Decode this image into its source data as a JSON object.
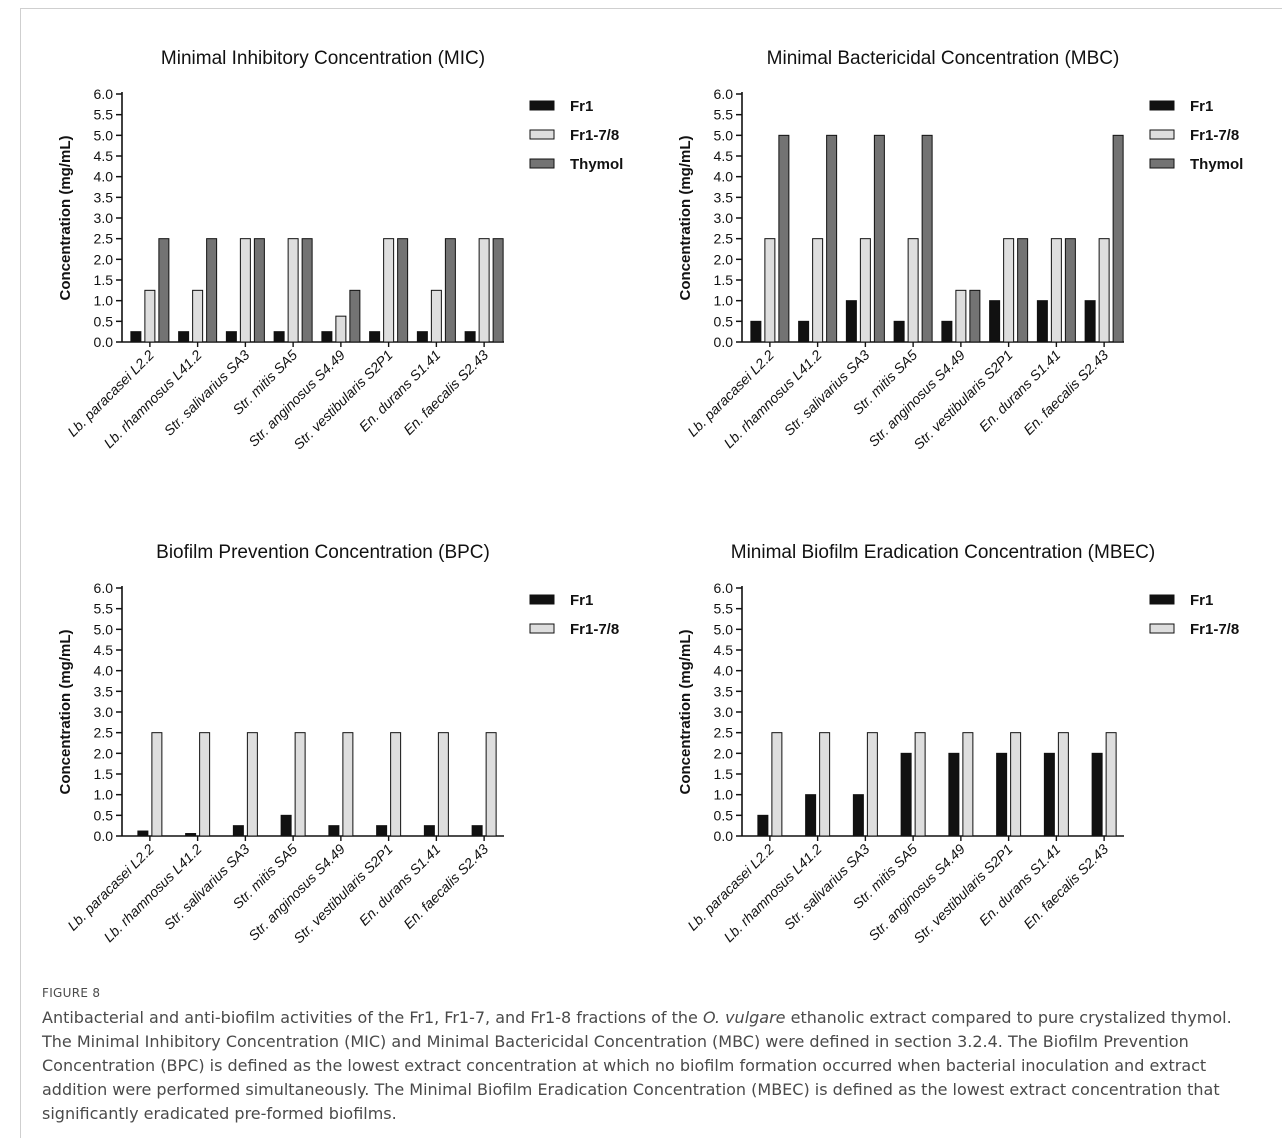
{
  "chart_data": [
    {
      "type": "bar",
      "title": "Minimal Inhibitory Concentration (MIC)",
      "ylabel": "Concentration (mg/mL)",
      "xlabel": "",
      "ylim": [
        0,
        6
      ],
      "yticks": [
        "0.0",
        "0.5",
        "1.0",
        "1.5",
        "2.0",
        "2.5",
        "3.0",
        "3.5",
        "4.0",
        "4.5",
        "5.0",
        "5.5",
        "6.0"
      ],
      "grid": false,
      "legend_position": "right",
      "categories": [
        "Lb. paracasei L2.2",
        "Lb. rhamnosus L41.2",
        "Str. salivarius SA3",
        "Str. mitis SA5",
        "Str. anginosus S4.49",
        "Str. vestibularis S2P1",
        "En. durans S1.41",
        "En. faecalis S2.43"
      ],
      "series": [
        {
          "name": "Fr1",
          "color": "#111111",
          "values": [
            0.25,
            0.25,
            0.25,
            0.25,
            0.25,
            0.25,
            0.25,
            0.25
          ]
        },
        {
          "name": "Fr1-7/8",
          "color": "#dedede",
          "values": [
            1.25,
            1.25,
            2.5,
            2.5,
            0.625,
            2.5,
            1.25,
            2.5
          ]
        },
        {
          "name": "Thymol",
          "color": "#737373",
          "values": [
            2.5,
            2.5,
            2.5,
            2.5,
            1.25,
            2.5,
            2.5,
            2.5
          ]
        }
      ]
    },
    {
      "type": "bar",
      "title": "Minimal Bactericidal Concentration (MBC)",
      "ylabel": "Concentration (mg/mL)",
      "xlabel": "",
      "ylim": [
        0,
        6
      ],
      "yticks": [
        "0.0",
        "0.5",
        "1.0",
        "1.5",
        "2.0",
        "2.5",
        "3.0",
        "3.5",
        "4.0",
        "4.5",
        "5.0",
        "5.5",
        "6.0"
      ],
      "grid": false,
      "legend_position": "right",
      "categories": [
        "Lb. paracasei L2.2",
        "Lb. rhamnosus L41.2",
        "Str. salivarius SA3",
        "Str. mitis SA5",
        "Str. anginosus S4.49",
        "Str. vestibularis S2P1",
        "En. durans S1.41",
        "En. faecalis S2.43"
      ],
      "series": [
        {
          "name": "Fr1",
          "color": "#111111",
          "values": [
            0.5,
            0.5,
            1.0,
            0.5,
            0.5,
            1.0,
            1.0,
            1.0
          ]
        },
        {
          "name": "Fr1-7/8",
          "color": "#dedede",
          "values": [
            2.5,
            2.5,
            2.5,
            2.5,
            1.25,
            2.5,
            2.5,
            2.5
          ]
        },
        {
          "name": "Thymol",
          "color": "#737373",
          "values": [
            5.0,
            5.0,
            5.0,
            5.0,
            1.25,
            2.5,
            2.5,
            5.0
          ]
        }
      ]
    },
    {
      "type": "bar",
      "title": "Biofilm Prevention Concentration (BPC)",
      "ylabel": "Concentration (mg/mL)",
      "xlabel": "",
      "ylim": [
        0,
        6
      ],
      "yticks": [
        "0.0",
        "0.5",
        "1.0",
        "1.5",
        "2.0",
        "2.5",
        "3.0",
        "3.5",
        "4.0",
        "4.5",
        "5.0",
        "5.5",
        "6.0"
      ],
      "grid": false,
      "legend_position": "right",
      "categories": [
        "Lb. paracasei L2.2",
        "Lb. rhamnosus L41.2",
        "Str. salivarius SA3",
        "Str. mitis SA5",
        "Str. anginosus S4.49",
        "Str. vestibularis S2P1",
        "En. durans S1.41",
        "En. faecalis S2.43"
      ],
      "series": [
        {
          "name": "Fr1",
          "color": "#111111",
          "values": [
            0.12,
            0.06,
            0.25,
            0.5,
            0.25,
            0.25,
            0.25,
            0.25
          ]
        },
        {
          "name": "Fr1-7/8",
          "color": "#dedede",
          "values": [
            2.5,
            2.5,
            2.5,
            2.5,
            2.5,
            2.5,
            2.5,
            2.5
          ]
        }
      ]
    },
    {
      "type": "bar",
      "title": "Minimal Biofilm Eradication Concentration (MBEC)",
      "ylabel": "Concentration (mg/mL)",
      "xlabel": "",
      "ylim": [
        0,
        6
      ],
      "yticks": [
        "0.0",
        "0.5",
        "1.0",
        "1.5",
        "2.0",
        "2.5",
        "3.0",
        "3.5",
        "4.0",
        "4.5",
        "5.0",
        "5.5",
        "6.0"
      ],
      "grid": false,
      "legend_position": "right",
      "categories": [
        "Lb. paracasei L2.2",
        "Lb. rhamnosus L41.2",
        "Str. salivarius SA3",
        "Str. mitis SA5",
        "Str. anginosus S4.49",
        "Str. vestibularis S2P1",
        "En. durans S1.41",
        "En. faecalis S2.43"
      ],
      "series": [
        {
          "name": "Fr1",
          "color": "#111111",
          "values": [
            0.5,
            1.0,
            1.0,
            2.0,
            2.0,
            2.0,
            2.0,
            2.0
          ]
        },
        {
          "name": "Fr1-7/8",
          "color": "#dedede",
          "values": [
            2.5,
            2.5,
            2.5,
            2.5,
            2.5,
            2.5,
            2.5,
            2.5
          ]
        }
      ]
    }
  ],
  "caption": {
    "label": "FIGURE 8",
    "text_before": "Antibacterial and anti-biofilm activities of the Fr1, Fr1-7, and Fr1-8 fractions of the ",
    "text_italic": "O. vulgare",
    "text_after": " ethanolic extract compared to pure crystalized thymol. The Minimal Inhibitory Concentration (MIC) and Minimal Bactericidal Concentration (MBC) were defined in section 3.2.4. The Biofilm Prevention Concentration (BPC) is defined as the lowest extract concentration at which no biofilm formation occurred when bacterial inoculation and extract addition were performed simultaneously. The Minimal Biofilm Eradication Concentration (MBEC) is defined as the lowest extract concentration that significantly eradicated pre-formed biofilms."
  }
}
